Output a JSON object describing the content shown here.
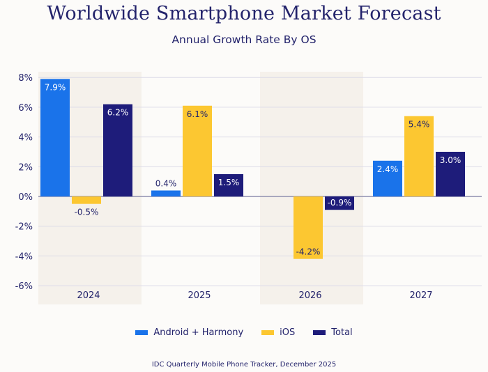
{
  "chart_data": {
    "type": "bar",
    "title": "Worldwide Smartphone Market Forecast",
    "subtitle": "Annual Growth Rate By OS",
    "categories": [
      "2024",
      "2025",
      "2026",
      "2027"
    ],
    "series": [
      {
        "name": "Android + Harmony",
        "color": "#1a73ea",
        "values": [
          7.9,
          0.4,
          null,
          2.4
        ],
        "labels": [
          "7.9%",
          "0.4%",
          "",
          "2.4%"
        ]
      },
      {
        "name": "iOS",
        "color": "#fcc731",
        "values": [
          -0.5,
          6.1,
          -4.2,
          5.4
        ],
        "labels": [
          "-0.5%",
          "6.1%",
          "-4.2%",
          "5.4%"
        ]
      },
      {
        "name": "Total",
        "color": "#1e1c7a",
        "values": [
          6.2,
          1.5,
          -0.9,
          3.0
        ],
        "labels": [
          "6.2%",
          "1.5%",
          "-0.9%",
          "3.0%"
        ]
      }
    ],
    "yticks": [
      "8%",
      "6%",
      "4%",
      "2%",
      "0%",
      "-2%",
      "-4%",
      "-6%"
    ],
    "ytick_values": [
      8,
      6,
      4,
      2,
      0,
      -2,
      -4,
      -6
    ],
    "ylim": [
      -6,
      8
    ],
    "grid": true,
    "shaded_categories": [
      "2024",
      "2026"
    ],
    "legend_position": "bottom",
    "source": "IDC Quarterly Mobile Phone Tracker, December 2025"
  }
}
